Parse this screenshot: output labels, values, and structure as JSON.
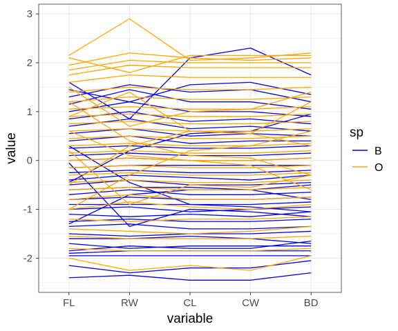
{
  "chart_data": {
    "type": "line",
    "subtype": "parallel-coordinates",
    "xlabel": "variable",
    "ylabel": "value",
    "categories": [
      "FL",
      "RW",
      "CL",
      "CW",
      "BD"
    ],
    "ylim": [
      -2.7,
      3.2
    ],
    "yticks": [
      -2,
      -1,
      0,
      1,
      2,
      3
    ],
    "grid": true,
    "legend": {
      "title": "sp",
      "position": "right",
      "entries": [
        {
          "label": "B",
          "color": "#0000ee"
        },
        {
          "label": "O",
          "color": "#ffa500"
        }
      ]
    },
    "series": [
      {
        "group": "B",
        "values": [
          -2.4,
          -2.35,
          -2.45,
          -2.45,
          -2.3
        ]
      },
      {
        "group": "B",
        "values": [
          -2.15,
          -2.3,
          -2.2,
          -2.2,
          -2.05
        ]
      },
      {
        "group": "B",
        "values": [
          -1.95,
          -1.95,
          -1.95,
          -1.95,
          -1.95
        ]
      },
      {
        "group": "B",
        "values": [
          -1.9,
          -1.85,
          -1.85,
          -1.85,
          -1.85
        ]
      },
      {
        "group": "B",
        "values": [
          -1.85,
          -1.75,
          -1.8,
          -1.8,
          -1.65
        ]
      },
      {
        "group": "B",
        "values": [
          -1.7,
          -1.8,
          -1.75,
          -1.75,
          -1.75
        ]
      },
      {
        "group": "B",
        "values": [
          -1.6,
          -1.6,
          -1.55,
          -1.6,
          -1.7
        ]
      },
      {
        "group": "B",
        "values": [
          -1.5,
          -1.55,
          -1.5,
          -1.5,
          -1.45
        ]
      },
      {
        "group": "B",
        "values": [
          -1.35,
          -1.3,
          -1.4,
          -1.4,
          -1.35
        ]
      },
      {
        "group": "B",
        "values": [
          -1.25,
          -1.2,
          -1.25,
          -1.25,
          -1.2
        ]
      },
      {
        "group": "B",
        "values": [
          -1.1,
          -1.15,
          -1.1,
          -1.15,
          -1.05
        ]
      },
      {
        "group": "B",
        "values": [
          -1.0,
          -0.95,
          -1.05,
          -1.0,
          -0.95
        ]
      },
      {
        "group": "B",
        "values": [
          -0.9,
          -0.9,
          -0.9,
          -0.9,
          -0.85
        ]
      },
      {
        "group": "B",
        "values": [
          -0.8,
          -0.75,
          -0.8,
          -0.8,
          -0.75
        ]
      },
      {
        "group": "B",
        "values": [
          -0.7,
          -0.6,
          -0.7,
          -0.7,
          -0.65
        ]
      },
      {
        "group": "B",
        "values": [
          -0.6,
          -0.55,
          -0.55,
          -0.6,
          -0.5
        ]
      },
      {
        "group": "B",
        "values": [
          -0.5,
          -0.4,
          -0.5,
          -0.5,
          -0.45
        ]
      },
      {
        "group": "B",
        "values": [
          -0.4,
          -0.3,
          -0.35,
          -0.4,
          -0.3
        ]
      },
      {
        "group": "B",
        "values": [
          -0.25,
          -0.2,
          -0.25,
          -0.25,
          -0.2
        ]
      },
      {
        "group": "B",
        "values": [
          -0.15,
          -0.1,
          -0.1,
          -0.1,
          -0.1
        ]
      },
      {
        "group": "B",
        "values": [
          0.0,
          0.05,
          0.0,
          0.0,
          0.05
        ]
      },
      {
        "group": "B",
        "values": [
          0.1,
          0.15,
          0.1,
          0.1,
          0.15
        ]
      },
      {
        "group": "B",
        "values": [
          0.25,
          0.3,
          0.25,
          0.25,
          0.3
        ]
      },
      {
        "group": "B",
        "values": [
          0.4,
          0.5,
          0.35,
          0.4,
          0.4
        ]
      },
      {
        "group": "B",
        "values": [
          0.55,
          0.65,
          0.5,
          0.55,
          0.5
        ]
      },
      {
        "group": "B",
        "values": [
          0.7,
          0.85,
          0.65,
          0.7,
          0.6
        ]
      },
      {
        "group": "B",
        "values": [
          0.85,
          1.0,
          0.8,
          0.85,
          0.75
        ]
      },
      {
        "group": "B",
        "values": [
          1.0,
          1.2,
          1.0,
          1.0,
          0.9
        ]
      },
      {
        "group": "B",
        "values": [
          1.15,
          1.45,
          1.2,
          1.2,
          1.05
        ]
      },
      {
        "group": "B",
        "values": [
          1.3,
          1.55,
          1.4,
          1.45,
          1.2
        ]
      },
      {
        "group": "B",
        "values": [
          1.45,
          1.2,
          1.55,
          1.6,
          1.35
        ]
      },
      {
        "group": "B",
        "values": [
          1.6,
          0.85,
          2.1,
          2.3,
          1.75
        ]
      },
      {
        "group": "B",
        "values": [
          -1.3,
          -0.7,
          -0.6,
          -0.6,
          -0.8
        ]
      },
      {
        "group": "B",
        "values": [
          0.3,
          -0.45,
          -0.9,
          -0.95,
          -1.05
        ]
      },
      {
        "group": "B",
        "values": [
          -0.45,
          0.2,
          0.55,
          0.6,
          0.95
        ]
      },
      {
        "group": "B",
        "values": [
          -0.05,
          -1.35,
          -1.0,
          -1.05,
          -1.15
        ]
      },
      {
        "group": "O",
        "values": [
          -2.0,
          -2.25,
          -2.15,
          -2.25,
          -1.95
        ]
      },
      {
        "group": "O",
        "values": [
          -1.8,
          -1.85,
          -1.85,
          -1.85,
          -1.8
        ]
      },
      {
        "group": "O",
        "values": [
          -1.55,
          -1.6,
          -1.6,
          -1.6,
          -1.55
        ]
      },
      {
        "group": "O",
        "values": [
          -1.4,
          -1.45,
          -1.5,
          -1.45,
          -1.35
        ]
      },
      {
        "group": "O",
        "values": [
          -1.2,
          -1.25,
          -1.2,
          -1.2,
          -1.15
        ]
      },
      {
        "group": "O",
        "values": [
          -1.0,
          -0.85,
          -0.95,
          -1.0,
          -0.9
        ]
      },
      {
        "group": "O",
        "values": [
          -0.8,
          -0.7,
          -0.8,
          -0.8,
          -0.75
        ]
      },
      {
        "group": "O",
        "values": [
          -0.6,
          -0.55,
          -0.6,
          -0.6,
          -0.55
        ]
      },
      {
        "group": "O",
        "values": [
          -0.45,
          -0.4,
          -0.45,
          -0.45,
          -0.4
        ]
      },
      {
        "group": "O",
        "values": [
          -0.3,
          -0.25,
          -0.3,
          -0.3,
          -0.25
        ]
      },
      {
        "group": "O",
        "values": [
          -0.15,
          -0.1,
          -0.15,
          -0.15,
          -0.1
        ]
      },
      {
        "group": "O",
        "values": [
          0.0,
          0.05,
          0.0,
          0.0,
          0.05
        ]
      },
      {
        "group": "O",
        "values": [
          0.15,
          0.2,
          0.15,
          0.15,
          0.2
        ]
      },
      {
        "group": "O",
        "values": [
          0.3,
          0.35,
          0.3,
          0.3,
          0.35
        ]
      },
      {
        "group": "O",
        "values": [
          0.45,
          0.5,
          0.45,
          0.45,
          0.5
        ]
      },
      {
        "group": "O",
        "values": [
          0.6,
          0.65,
          0.6,
          0.6,
          0.65
        ]
      },
      {
        "group": "O",
        "values": [
          0.75,
          0.8,
          0.75,
          0.75,
          0.8
        ]
      },
      {
        "group": "O",
        "values": [
          0.9,
          0.95,
          0.9,
          0.9,
          0.95
        ]
      },
      {
        "group": "O",
        "values": [
          1.05,
          1.1,
          1.05,
          1.05,
          1.1
        ]
      },
      {
        "group": "O",
        "values": [
          1.2,
          1.3,
          1.25,
          1.25,
          1.3
        ]
      },
      {
        "group": "O",
        "values": [
          1.4,
          1.5,
          1.45,
          1.45,
          1.5
        ]
      },
      {
        "group": "O",
        "values": [
          1.6,
          1.75,
          1.7,
          1.7,
          1.7
        ]
      },
      {
        "group": "O",
        "values": [
          1.75,
          1.95,
          1.9,
          1.9,
          1.9
        ]
      },
      {
        "group": "O",
        "values": [
          1.85,
          2.05,
          2.0,
          2.0,
          2.0
        ]
      },
      {
        "group": "O",
        "values": [
          1.95,
          2.2,
          2.1,
          2.05,
          2.1
        ]
      },
      {
        "group": "O",
        "values": [
          2.15,
          2.9,
          2.05,
          2.1,
          2.2
        ]
      },
      {
        "group": "O",
        "values": [
          2.1,
          1.8,
          2.15,
          2.15,
          2.15
        ]
      },
      {
        "group": "O",
        "values": [
          0.6,
          0.1,
          0.0,
          -0.1,
          -0.6
        ]
      },
      {
        "group": "O",
        "values": [
          -0.5,
          0.3,
          0.6,
          0.55,
          1.2
        ]
      },
      {
        "group": "O",
        "values": [
          1.2,
          0.4,
          0.1,
          0.05,
          -0.3
        ]
      },
      {
        "group": "O",
        "values": [
          -1.0,
          -0.3,
          0.2,
          0.3,
          0.6
        ]
      },
      {
        "group": "O",
        "values": [
          0.9,
          1.4,
          0.6,
          0.55,
          0.3
        ]
      },
      {
        "group": "O",
        "values": [
          1.5,
          0.7,
          1.0,
          1.05,
          1.4
        ]
      },
      {
        "group": "O",
        "values": [
          0.2,
          -0.9,
          -0.5,
          -0.55,
          -0.3
        ]
      }
    ]
  }
}
